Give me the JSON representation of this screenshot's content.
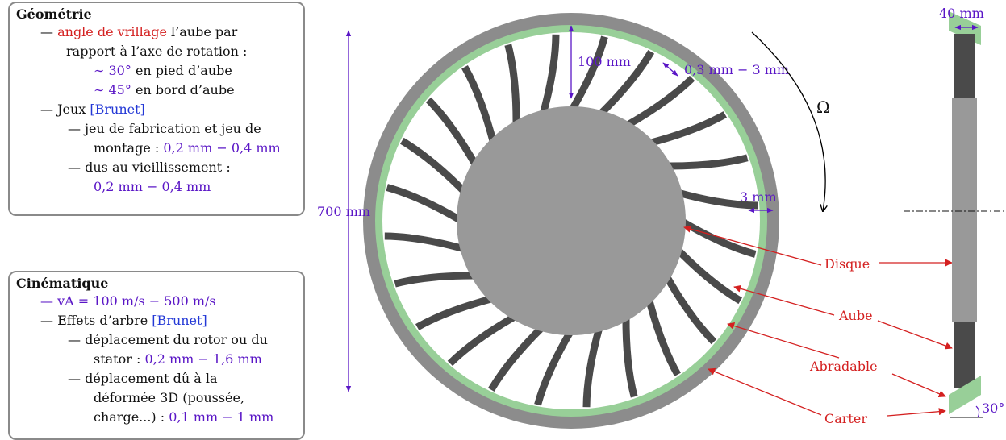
{
  "geometry_box": {
    "title": "Géométrie",
    "items": {
      "twist_dash": "—",
      "twist_term": "angle de vrillage",
      "twist_rest": " l’aube par",
      "twist_line2": "rapport à l’axe de rotation :",
      "foot_value": "∼ 30°",
      "foot_text": " en pied d’aube",
      "edge_value": "∼ 45°",
      "edge_text": " en bord d’aube",
      "clearance_dash": "—",
      "clearance_text": "Jeux ",
      "clearance_ref": "[Brunet]",
      "fab_dash": "—",
      "fab_line1": "jeu de fabrication et jeu de",
      "fab_line2": "montage : ",
      "fab_value": "0,2 mm − 0,4 mm",
      "aging_dash": "—",
      "aging_line1": "dus au vieillissement :",
      "aging_value": "0,2 mm − 0,4 mm"
    }
  },
  "kinematics_box": {
    "title": "Cinématique",
    "items": {
      "speed_dash": "—",
      "speed_value": "vA = 100 m/s − 500 m/s",
      "shaft_dash": "—",
      "shaft_text": "Effets d’arbre ",
      "shaft_ref": "[Brunet]",
      "rotor_dash": "—",
      "rotor_line1": "déplacement du rotor ou du",
      "rotor_line2": "stator : ",
      "rotor_value": "0,2 mm − 1,6 mm",
      "def_dash": "—",
      "def_line1": "déplacement dû à la",
      "def_line2": "déformée 3D (poussée,",
      "def_line3": "charge...) : ",
      "def_value": "0,1 mm − 1 mm"
    }
  },
  "dimensions": {
    "diameter": "700 mm",
    "blade_height": "100 mm",
    "gap": "0,3 mm − 3 mm",
    "abradable_thickness": "3 mm",
    "blade_width": "40 mm",
    "angle": "30°",
    "rotation": "Ω"
  },
  "labels": {
    "disk": "Disque",
    "blade": "Aube",
    "abradable": "Abradable",
    "casing": "Carter"
  },
  "colors": {
    "casing": "#8c8c8c",
    "abradable": "#98cf98",
    "disk": "#999999",
    "blade": "#4a4a4a",
    "label_red": "#d42020",
    "dimension_violet": "#5a16c6",
    "reference_blue": "#2338d6"
  }
}
